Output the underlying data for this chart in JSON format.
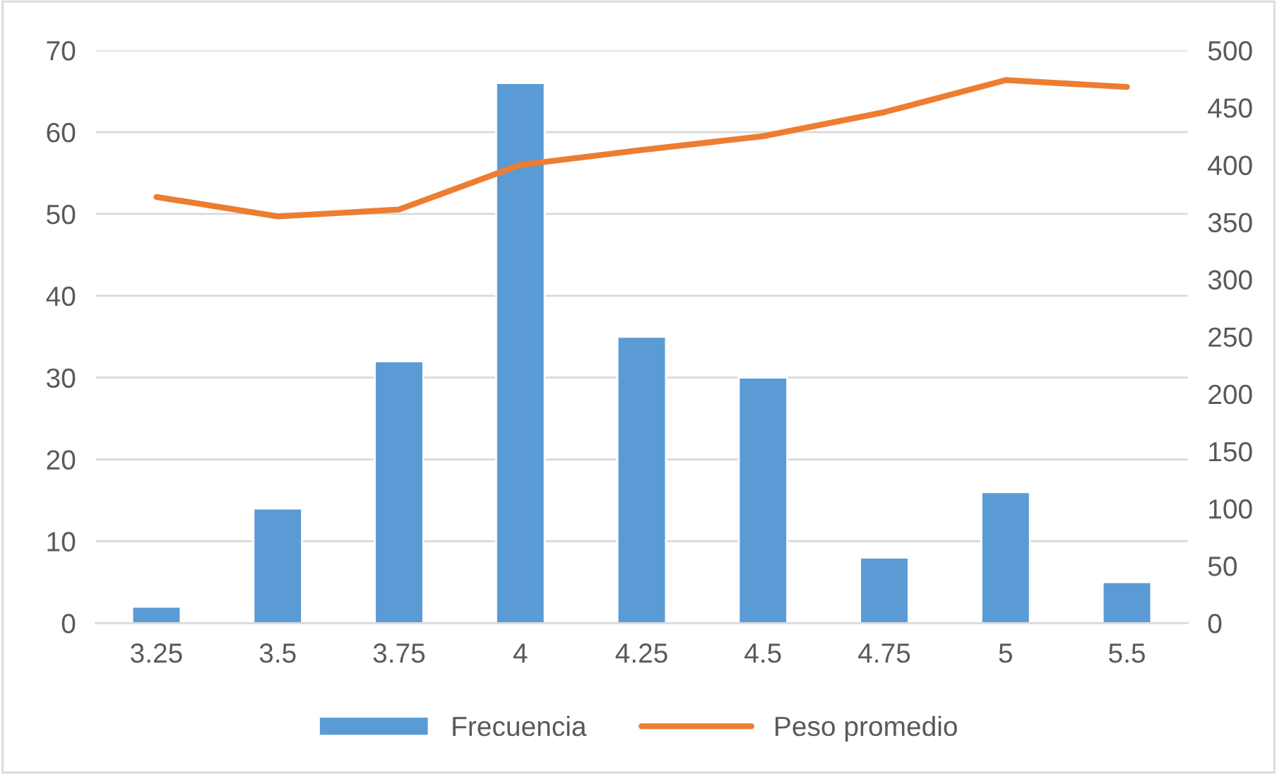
{
  "chart_data": {
    "type": "bar",
    "categories": [
      "3.25",
      "3.5",
      "3.75",
      "4",
      "4.25",
      "4.5",
      "4.75",
      "5",
      "5.5"
    ],
    "series": [
      {
        "name": "Frecuencia",
        "color": "#5b9bd5",
        "values": [
          2,
          14,
          32,
          66,
          35,
          30,
          8,
          16,
          5
        ]
      },
      {
        "name": "Peso promedio",
        "type": "line",
        "axis": "y2",
        "color": "#ed7d31",
        "values": [
          372,
          355,
          361,
          400,
          413,
          425,
          446,
          474,
          468
        ]
      }
    ],
    "ylim": [
      0,
      70
    ],
    "yticks": [
      0,
      10,
      20,
      30,
      40,
      50,
      60,
      70
    ],
    "y2lim": [
      0,
      500
    ],
    "y2ticks": [
      0,
      50,
      100,
      150,
      200,
      250,
      300,
      350,
      400,
      450,
      500
    ],
    "grid": "y",
    "legend": "bottom",
    "marker": "none"
  }
}
